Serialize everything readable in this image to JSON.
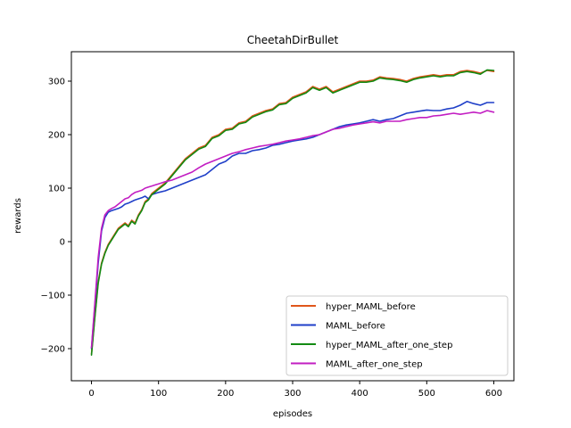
{
  "chart_data": {
    "type": "line",
    "title": "CheetahDirBullet",
    "xlabel": "episodes",
    "ylabel": "rewards",
    "xlim": [
      -30,
      630
    ],
    "ylim": [
      -260,
      355
    ],
    "xticks": [
      0,
      100,
      200,
      300,
      400,
      500,
      600
    ],
    "yticks": [
      -200,
      -100,
      0,
      100,
      200,
      300
    ],
    "grid": false,
    "legend_position": "lower right",
    "series": [
      {
        "name": "hyper_MAML_before",
        "color": "#e0561b",
        "x": [
          0,
          5,
          10,
          15,
          20,
          25,
          30,
          35,
          40,
          45,
          50,
          55,
          60,
          65,
          70,
          75,
          80,
          85,
          90,
          95,
          100,
          110,
          120,
          130,
          140,
          150,
          160,
          170,
          180,
          190,
          200,
          210,
          220,
          230,
          240,
          250,
          260,
          270,
          280,
          290,
          300,
          310,
          320,
          330,
          340,
          350,
          360,
          370,
          380,
          390,
          400,
          410,
          420,
          430,
          440,
          450,
          460,
          470,
          480,
          490,
          500,
          510,
          520,
          530,
          540,
          550,
          560,
          570,
          580,
          590,
          600
        ],
        "y": [
          -210,
          -140,
          -75,
          -40,
          -20,
          -5,
          5,
          15,
          25,
          30,
          35,
          30,
          40,
          35,
          50,
          60,
          75,
          80,
          90,
          95,
          100,
          110,
          125,
          140,
          155,
          165,
          175,
          180,
          195,
          200,
          210,
          212,
          222,
          225,
          235,
          240,
          245,
          248,
          258,
          260,
          270,
          275,
          280,
          290,
          285,
          290,
          280,
          285,
          290,
          295,
          300,
          300,
          302,
          308,
          306,
          305,
          303,
          300,
          305,
          308,
          310,
          312,
          310,
          312,
          312,
          318,
          320,
          318,
          315,
          320,
          318
        ]
      },
      {
        "name": "MAML_before",
        "color": "#1f3fc8",
        "x": [
          0,
          5,
          10,
          15,
          20,
          25,
          30,
          35,
          40,
          45,
          50,
          55,
          60,
          65,
          70,
          75,
          80,
          85,
          90,
          95,
          100,
          110,
          120,
          130,
          140,
          150,
          160,
          170,
          180,
          190,
          200,
          210,
          220,
          230,
          240,
          250,
          260,
          270,
          280,
          290,
          300,
          310,
          320,
          330,
          340,
          350,
          360,
          370,
          380,
          390,
          400,
          410,
          420,
          430,
          440,
          450,
          460,
          470,
          480,
          490,
          500,
          510,
          520,
          530,
          540,
          550,
          560,
          570,
          580,
          590,
          600
        ],
        "y": [
          -200,
          -120,
          -40,
          20,
          45,
          55,
          58,
          60,
          62,
          65,
          70,
          72,
          75,
          78,
          80,
          82,
          85,
          80,
          88,
          90,
          92,
          95,
          100,
          105,
          110,
          115,
          120,
          125,
          135,
          145,
          150,
          160,
          165,
          165,
          170,
          172,
          175,
          180,
          182,
          185,
          188,
          190,
          192,
          195,
          200,
          205,
          210,
          215,
          218,
          220,
          222,
          225,
          228,
          225,
          228,
          230,
          235,
          240,
          242,
          244,
          246,
          245,
          245,
          248,
          250,
          255,
          262,
          258,
          255,
          260,
          260
        ]
      },
      {
        "name": "hyper_MAML_after_one_step",
        "color": "#138a13",
        "x": [
          0,
          5,
          10,
          15,
          20,
          25,
          30,
          35,
          40,
          45,
          50,
          55,
          60,
          65,
          70,
          75,
          80,
          85,
          90,
          95,
          100,
          110,
          120,
          130,
          140,
          150,
          160,
          170,
          180,
          190,
          200,
          210,
          220,
          230,
          240,
          250,
          260,
          270,
          280,
          290,
          300,
          310,
          320,
          330,
          340,
          350,
          360,
          370,
          380,
          390,
          400,
          410,
          420,
          430,
          440,
          450,
          460,
          470,
          480,
          490,
          500,
          510,
          520,
          530,
          540,
          550,
          560,
          570,
          580,
          590,
          600
        ],
        "y": [
          -212,
          -142,
          -78,
          -42,
          -22,
          -7,
          3,
          13,
          23,
          28,
          33,
          28,
          38,
          33,
          48,
          58,
          73,
          78,
          88,
          93,
          98,
          108,
          123,
          138,
          153,
          163,
          173,
          178,
          193,
          198,
          208,
          210,
          220,
          223,
          233,
          238,
          243,
          246,
          256,
          258,
          268,
          273,
          278,
          288,
          283,
          288,
          278,
          283,
          288,
          293,
          298,
          298,
          300,
          306,
          304,
          303,
          301,
          298,
          303,
          306,
          308,
          310,
          308,
          310,
          310,
          316,
          318,
          316,
          313,
          321,
          320
        ]
      },
      {
        "name": "MAML_after_one_step",
        "color": "#c21dc2",
        "x": [
          0,
          5,
          10,
          15,
          20,
          25,
          30,
          35,
          40,
          45,
          50,
          55,
          60,
          65,
          70,
          75,
          80,
          85,
          90,
          95,
          100,
          110,
          120,
          130,
          140,
          150,
          160,
          170,
          180,
          190,
          200,
          210,
          220,
          230,
          240,
          250,
          260,
          270,
          280,
          290,
          300,
          310,
          320,
          330,
          340,
          350,
          360,
          370,
          380,
          390,
          400,
          410,
          420,
          430,
          440,
          450,
          460,
          470,
          480,
          490,
          500,
          510,
          520,
          530,
          540,
          550,
          560,
          570,
          580,
          590,
          600
        ],
        "y": [
          -198,
          -115,
          -30,
          25,
          50,
          58,
          62,
          65,
          70,
          75,
          80,
          82,
          88,
          92,
          94,
          96,
          100,
          102,
          104,
          106,
          108,
          112,
          115,
          120,
          125,
          130,
          138,
          145,
          150,
          155,
          160,
          165,
          168,
          172,
          175,
          178,
          180,
          182,
          185,
          188,
          190,
          192,
          195,
          198,
          200,
          205,
          210,
          212,
          215,
          218,
          220,
          222,
          224,
          222,
          225,
          225,
          225,
          228,
          230,
          232,
          232,
          235,
          236,
          238,
          240,
          238,
          240,
          242,
          240,
          245,
          242
        ]
      }
    ]
  }
}
